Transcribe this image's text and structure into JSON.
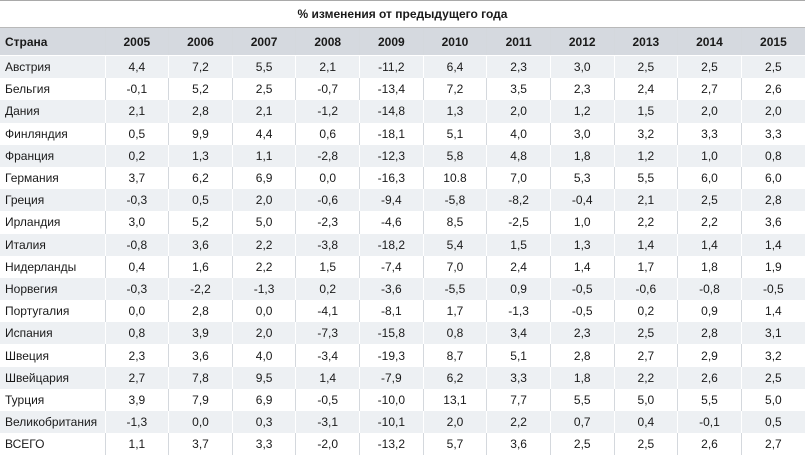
{
  "table": {
    "caption": "% изменения от предыдущего года",
    "country_header": "Страна",
    "years": [
      "2005",
      "2006",
      "2007",
      "2008",
      "2009",
      "2010",
      "2011",
      "2012",
      "2013",
      "2014",
      "2015"
    ],
    "rows": [
      {
        "country": "Австрия",
        "values": [
          "4,4",
          "7,2",
          "5,5",
          "2,1",
          "-11,2",
          "6,4",
          "2,3",
          "3,0",
          "2,5",
          "2,5",
          "2,5"
        ]
      },
      {
        "country": "Бельгия",
        "values": [
          "-0,1",
          "5,2",
          "2,5",
          "-0,7",
          "-13,4",
          "7,2",
          "3,5",
          "2,3",
          "2,4",
          "2,7",
          "2,6"
        ]
      },
      {
        "country": "Дания",
        "values": [
          "2,1",
          "2,8",
          "2,1",
          "-1,2",
          "-14,8",
          "1,3",
          "2,0",
          "1,2",
          "1,5",
          "2,0",
          "2,0"
        ]
      },
      {
        "country": "Финляндия",
        "values": [
          "0,5",
          "9,9",
          "4,4",
          "0,6",
          "-18,1",
          "5,1",
          "4,0",
          "3,0",
          "3,2",
          "3,3",
          "3,3"
        ]
      },
      {
        "country": "Франция",
        "values": [
          "0,2",
          "1,3",
          "1,1",
          "-2,8",
          "-12,3",
          "5,8",
          "4,8",
          "1,8",
          "1,2",
          "1,0",
          "0,8"
        ]
      },
      {
        "country": "Германия",
        "values": [
          "3,7",
          "6,2",
          "6,9",
          "0,0",
          "-16,3",
          "10.8",
          "7,0",
          "5,3",
          "5,5",
          "6,0",
          "6,0"
        ]
      },
      {
        "country": "Греция",
        "values": [
          "-0,3",
          "0,5",
          "2,0",
          "-0,6",
          "-9,4",
          "-5,8",
          "-8,2",
          "-0,4",
          "2,1",
          "2,5",
          "2,8"
        ]
      },
      {
        "country": "Ирландия",
        "values": [
          "3,0",
          "5,2",
          "5,0",
          "-2,3",
          "-4,6",
          "8,5",
          "-2,5",
          "1,0",
          "2,2",
          "2,2",
          "3,6"
        ]
      },
      {
        "country": "Италия",
        "values": [
          "-0,8",
          "3,6",
          "2,2",
          "-3,8",
          "-18,2",
          "5,4",
          "1,5",
          "1,3",
          "1,4",
          "1,4",
          "1,4"
        ]
      },
      {
        "country": "Нидерланды",
        "values": [
          "0,4",
          "1,6",
          "2,2",
          "1,5",
          "-7,4",
          "7,0",
          "2,4",
          "1,4",
          "1,7",
          "1,8",
          "1,9"
        ]
      },
      {
        "country": "Норвегия",
        "values": [
          "-0,3",
          "-2,2",
          "-1,3",
          "0,2",
          "-3,6",
          "-5,5",
          "0,9",
          "-0,5",
          "-0,6",
          "-0,8",
          "-0,5"
        ]
      },
      {
        "country": "Португалия",
        "values": [
          "0,0",
          "2,8",
          "0,0",
          "-4,1",
          "-8,1",
          "1,7",
          "-1,3",
          "-0,5",
          "0,2",
          "0,9",
          "1,4"
        ]
      },
      {
        "country": "Испания",
        "values": [
          "0,8",
          "3,9",
          "2,0",
          "-7,3",
          "-15,8",
          "0,8",
          "3,4",
          "2,3",
          "2,5",
          "2,8",
          "3,1"
        ]
      },
      {
        "country": "Швеция",
        "values": [
          "2,3",
          "3,6",
          "4,0",
          "-3,4",
          "-19,3",
          "8,7",
          "5,1",
          "2,8",
          "2,7",
          "2,9",
          "3,2"
        ]
      },
      {
        "country": "Швейцария",
        "values": [
          "2,7",
          "7,8",
          "9,5",
          "1,4",
          "-7,9",
          "6,2",
          "3,3",
          "1,8",
          "2,2",
          "2,6",
          "2,5"
        ]
      },
      {
        "country": "Турция",
        "values": [
          "3,9",
          "7,9",
          "6,9",
          "-0,5",
          "-10,0",
          "13,1",
          "7,7",
          "5,5",
          "5,0",
          "5,5",
          "5,0"
        ]
      },
      {
        "country": "Великобритания",
        "values": [
          "-1,3",
          "0,0",
          "0,3",
          "-3,1",
          "-10,1",
          "2,0",
          "2,2",
          "0,7",
          "0,4",
          "-0,1",
          "0,5"
        ]
      },
      {
        "country": "ВСЕГО",
        "values": [
          "1,1",
          "3,7",
          "3,3",
          "-2,0",
          "-13,2",
          "5,7",
          "3,6",
          "2,5",
          "2,5",
          "2,6",
          "2,7"
        ]
      }
    ]
  }
}
